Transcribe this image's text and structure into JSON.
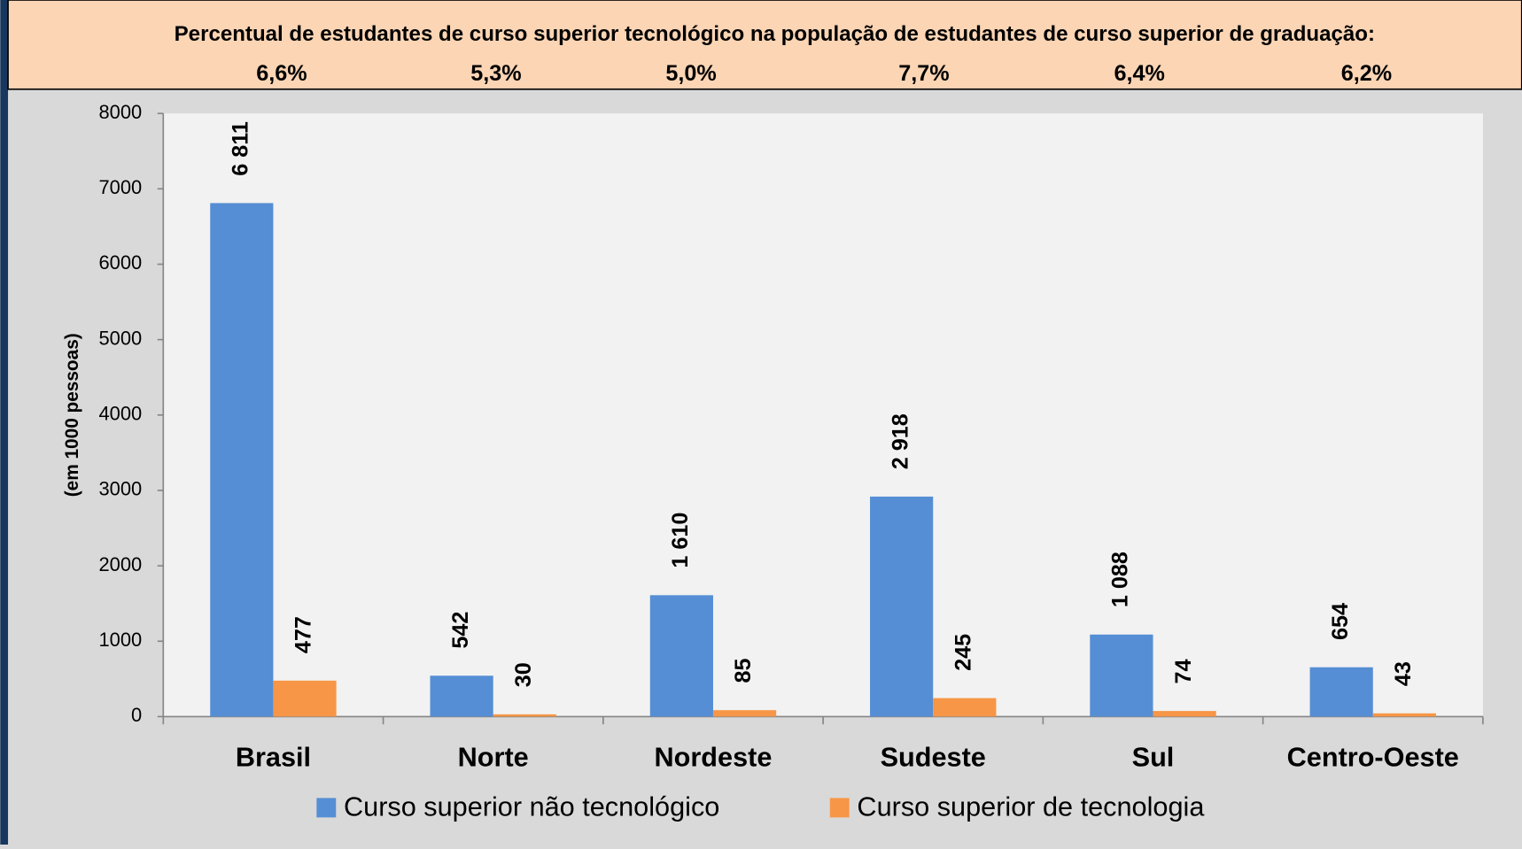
{
  "chart_data": {
    "type": "bar",
    "header_title": "Percentual de estudantes de curso superior tecnológico na população de estudantes de curso superior de graduação:",
    "header_values": [
      6.6,
      5.3,
      5.0,
      7.7,
      6.4,
      6.2
    ],
    "header_value_labels": [
      "6,6%",
      "5,3%",
      "5,0%",
      "7,7%",
      "6,4%",
      "6,2%"
    ],
    "ylabel": "(em 1000 pessoas)",
    "categories": [
      "Brasil",
      "Norte",
      "Nordeste",
      "Sudeste",
      "Sul",
      "Centro-Oeste"
    ],
    "series": [
      {
        "name": "Curso superior não tecnológico",
        "color": "#558ed5",
        "values": [
          6811,
          542,
          1610,
          2918,
          1088,
          654
        ],
        "value_labels": [
          "6 811",
          "542",
          "1 610",
          "2 918",
          "1 088",
          "654"
        ]
      },
      {
        "name": "Curso superior de tecnologia",
        "color": "#f79646",
        "values": [
          477,
          30,
          85,
          245,
          74,
          43
        ],
        "value_labels": [
          "477",
          "30",
          "85",
          "245",
          "74",
          "43"
        ]
      }
    ],
    "ylim": [
      0,
      8000
    ],
    "yticks": [
      0,
      1000,
      2000,
      3000,
      4000,
      5000,
      6000,
      7000,
      8000
    ],
    "legend": "bottom"
  }
}
